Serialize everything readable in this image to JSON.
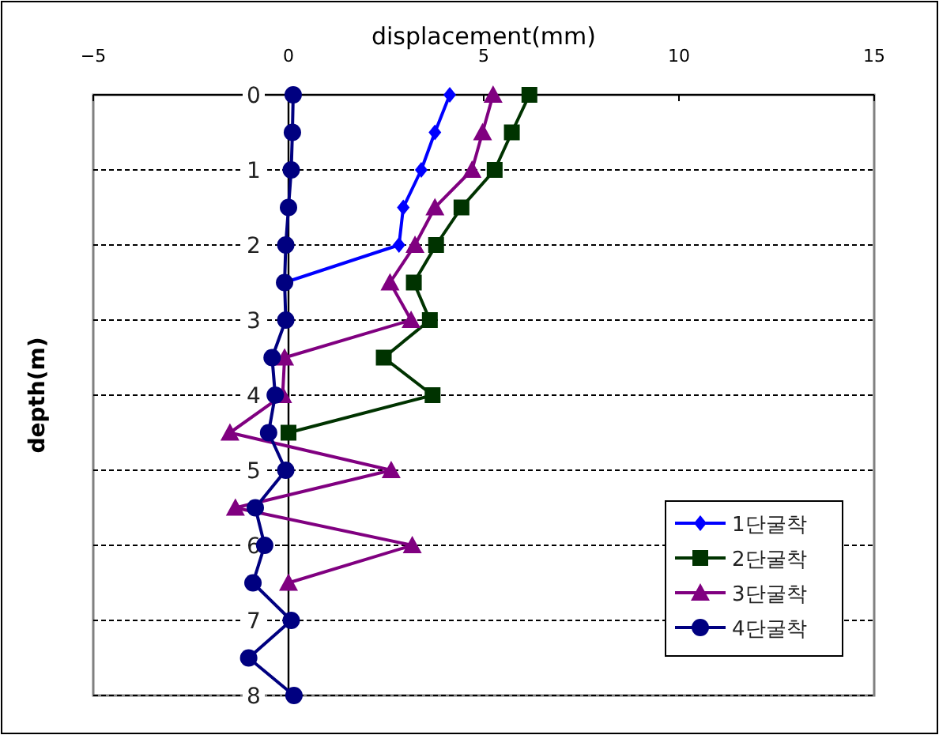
{
  "chart_data": {
    "type": "line",
    "xlabel": "displacement(mm)",
    "ylabel": "depth(m)",
    "xlim": [
      -5,
      15
    ],
    "xticks": [
      -5,
      0,
      5,
      10,
      15
    ],
    "ylim": [
      8,
      0
    ],
    "yticks": [
      0,
      1,
      2,
      3,
      4,
      5,
      6,
      7,
      8
    ],
    "grid": "y",
    "legend": "bottom right",
    "series": [
      {
        "name": "1단굴착",
        "color": "#0000ff",
        "marker": "diamond",
        "x": [
          4.13,
          3.75,
          3.4,
          2.94,
          2.83,
          -0.1
        ],
        "values": [
          0,
          0.5,
          1,
          1.5,
          2,
          2.5
        ]
      },
      {
        "name": "2단굴착",
        "color": "#003300",
        "marker": "square",
        "x": [
          6.17,
          5.72,
          5.28,
          4.43,
          3.78,
          3.21,
          3.62,
          2.44,
          3.69,
          0
        ],
        "values": [
          0,
          0.5,
          1,
          1.5,
          2,
          2.5,
          3,
          3.5,
          4,
          4.5
        ]
      },
      {
        "name": "3단굴착",
        "color": "#800080",
        "marker": "triangle",
        "x": [
          5.24,
          4.97,
          4.7,
          3.75,
          3.24,
          2.6,
          3.14,
          -0.1,
          -0.15,
          -1.5,
          2.63,
          -1.36,
          3.17,
          0
        ],
        "values": [
          0,
          0.5,
          1,
          1.5,
          2,
          2.5,
          3,
          3.5,
          4,
          4.5,
          5,
          5.5,
          6,
          6.5
        ]
      },
      {
        "name": "4단굴착",
        "color": "#000080",
        "marker": "circle",
        "x": [
          0.12,
          0.1,
          0.07,
          0,
          -0.07,
          -0.1,
          -0.07,
          -0.42,
          -0.34,
          -0.51,
          -0.07,
          -0.85,
          -0.61,
          -0.91,
          0.07,
          -1.02,
          0.14
        ],
        "values": [
          0,
          0.5,
          1,
          1.5,
          2,
          2.5,
          3,
          3.5,
          4,
          4.5,
          5,
          5.5,
          6,
          6.5,
          7,
          7.5,
          8
        ]
      }
    ]
  }
}
